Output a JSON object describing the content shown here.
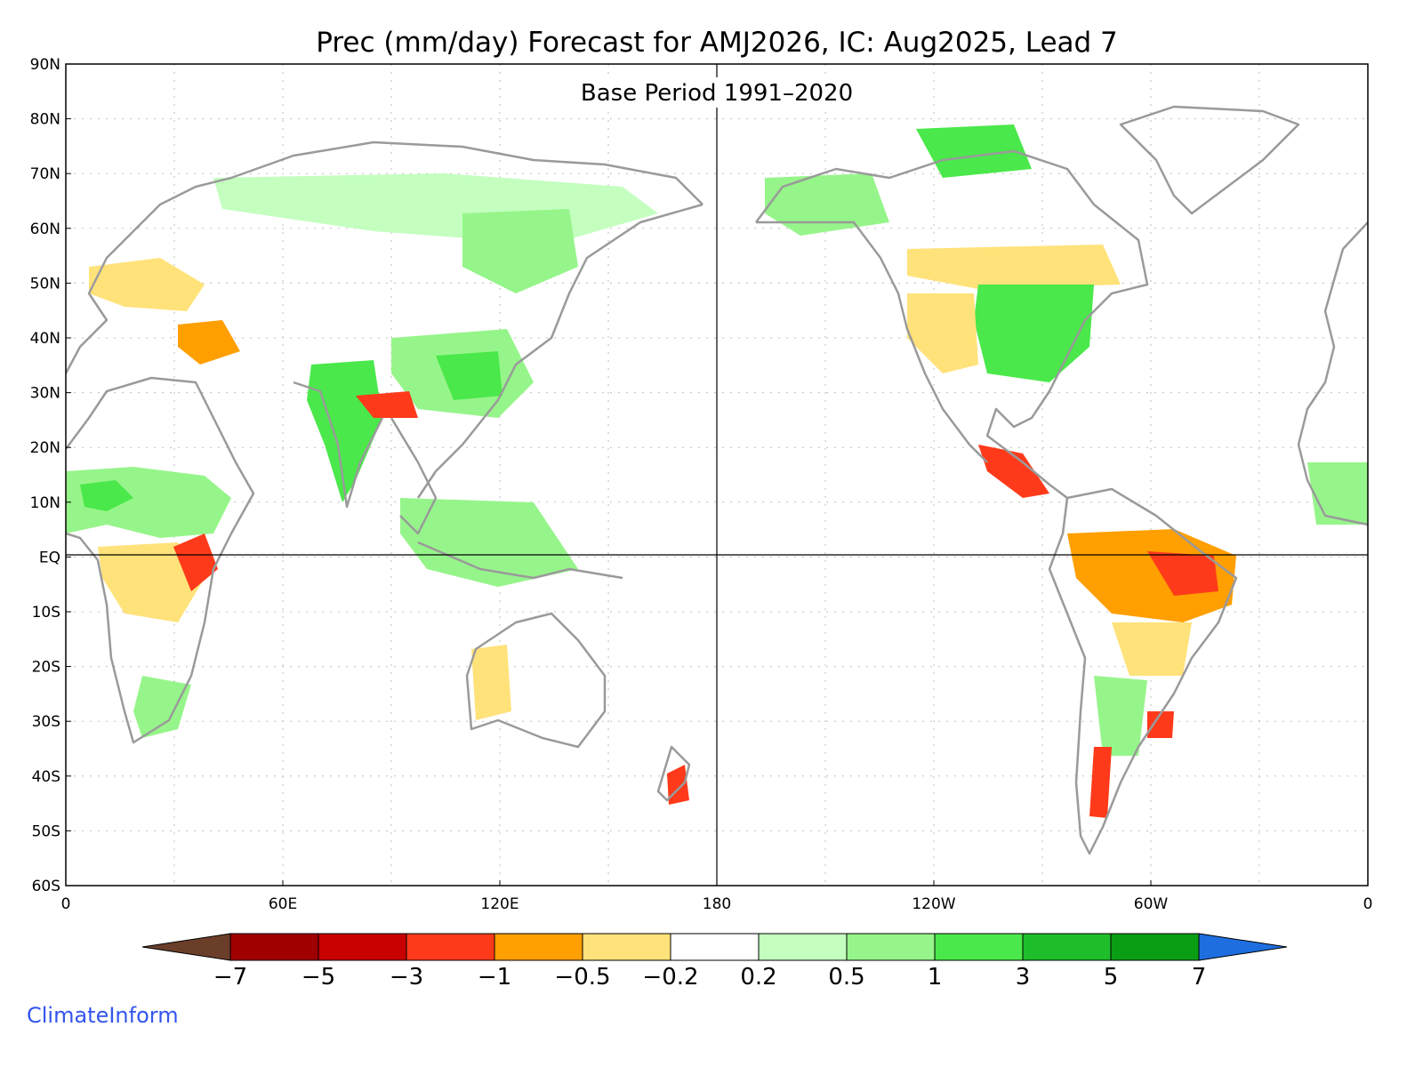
{
  "title": "Prec (mm/day) Forecast for AMJ2026, IC: Aug2025, Lead 7",
  "subtitle": "Base Period 1991–2020",
  "credit": "ClimateInform",
  "lat_labels": [
    "90N",
    "80N",
    "70N",
    "60N",
    "50N",
    "40N",
    "30N",
    "20N",
    "10N",
    "EQ",
    "10S",
    "20S",
    "30S",
    "40S",
    "50S",
    "60S"
  ],
  "lon_labels": [
    "0",
    "60E",
    "120E",
    "180",
    "120W",
    "60W",
    "0"
  ],
  "colorbar": {
    "labels": [
      "−7",
      "−5",
      "−3",
      "−1",
      "−0.5",
      "−0.2",
      "0.2",
      "0.5",
      "1",
      "3",
      "5",
      "7"
    ],
    "under_color": "#6b3e2a",
    "over_color": "#1e6ee0",
    "colors": [
      "#a00000",
      "#c80000",
      "#ff3a1a",
      "#ff9f00",
      "#ffe27a",
      "#ffffff",
      "#c4ffc0",
      "#96f58a",
      "#4ae84a",
      "#1ebe2a",
      "#0a9e14"
    ]
  },
  "colors": {
    "land_outline": "#9a9a9a",
    "grid": "#bdbdbd",
    "frame": "#000000"
  }
}
